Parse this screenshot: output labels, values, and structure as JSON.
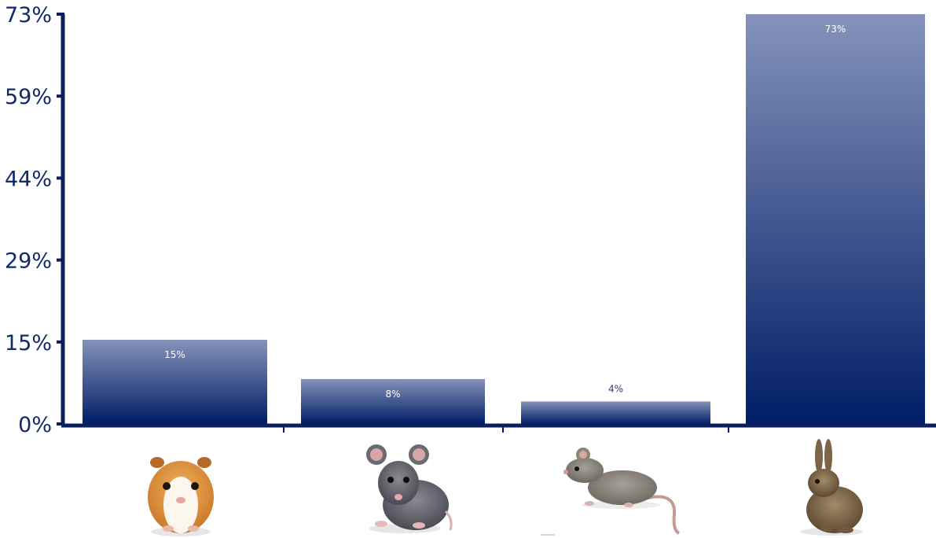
{
  "chart_data": {
    "type": "bar",
    "categories": [
      "guinea-pig",
      "mouse",
      "rat",
      "rabbit"
    ],
    "values": [
      15,
      8,
      4,
      73
    ],
    "value_labels": [
      "15%",
      "8%",
      "4%",
      "73%"
    ],
    "title": "",
    "xlabel": "",
    "ylabel": "",
    "y_ticks": [
      "0%",
      "15%",
      "29%",
      "44%",
      "59%",
      "73%"
    ],
    "ylim": [
      0,
      73
    ],
    "grid": false,
    "legend": "none",
    "x_axis_images": [
      "guinea-pig",
      "mouse",
      "rat",
      "rabbit"
    ],
    "colors": {
      "bar_top": "#8593bb",
      "bar_bottom": "#001d66",
      "axis": "#0b1f5c",
      "tick_text": "#122a6b",
      "label_light": "#ffffff",
      "label_dark": "#2a3b77"
    }
  }
}
